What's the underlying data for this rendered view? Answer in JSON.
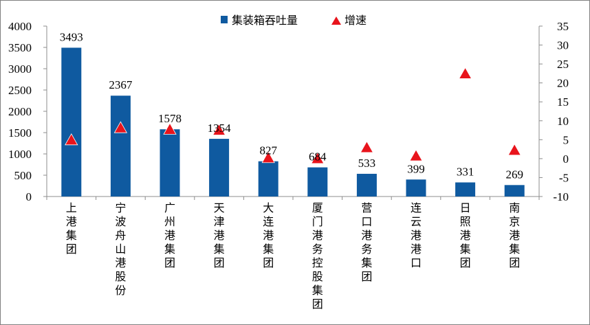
{
  "chart_data": {
    "type": "bar",
    "categories": [
      "上港集团",
      "宁波舟山港股份",
      "广州港集团",
      "天津港集团",
      "大连港集团",
      "厦门港务控股集团",
      "营口港务集团",
      "连云港港口",
      "日照港集团",
      "南京港集团"
    ],
    "series": [
      {
        "name": "集装箱吞吐量",
        "type": "bar",
        "axis": "left",
        "color": "#0f5aa0",
        "values": [
          3493,
          2367,
          1578,
          1354,
          827,
          684,
          533,
          399,
          331,
          269
        ],
        "data_labels": [
          "3493",
          "2367",
          "1578",
          "1354",
          "827",
          "684",
          "533",
          "399",
          "331",
          "269"
        ]
      },
      {
        "name": "增速",
        "type": "scatter",
        "marker": "triangle",
        "axis": "right",
        "color": "#e8141c",
        "values": [
          5.0,
          8.2,
          7.8,
          7.6,
          0.3,
          0.1,
          3.0,
          0.8,
          22.5,
          2.3
        ]
      }
    ],
    "y_left": {
      "lim": [
        0,
        4000
      ],
      "ticks": [
        "0",
        "500",
        "1000",
        "1500",
        "2000",
        "2500",
        "3000",
        "3500",
        "4000"
      ]
    },
    "y_right": {
      "lim": [
        -10,
        35
      ],
      "ticks": [
        "-10",
        "-5",
        "0",
        "5",
        "10",
        "15",
        "20",
        "25",
        "30",
        "35"
      ]
    },
    "legend_position": "top-center",
    "grid": false
  }
}
